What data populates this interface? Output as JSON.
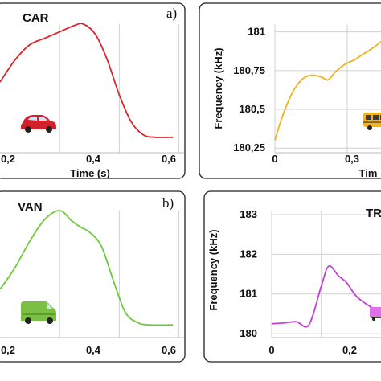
{
  "chart_data": [
    {
      "id": "car",
      "type": "line",
      "title": "CAR",
      "panel_letter": "a)",
      "xlabel": "Time (s)",
      "ylabel": "",
      "x_ticks": [
        "0,2",
        "0,4",
        "0,6"
      ],
      "y_ticks": [],
      "xlim": [
        0.0,
        0.62
      ],
      "ylim": [
        0,
        1
      ],
      "grid": true,
      "color": "#d9262b",
      "icon": "red-car-icon",
      "series": [
        {
          "x": [
            0.0,
            0.05,
            0.1,
            0.15,
            0.2,
            0.25,
            0.28,
            0.32,
            0.36,
            0.4,
            0.44,
            0.48,
            0.52,
            0.58
          ],
          "y": [
            0.55,
            0.72,
            0.84,
            0.89,
            0.94,
            0.99,
            1.0,
            0.92,
            0.72,
            0.45,
            0.24,
            0.14,
            0.12,
            0.12
          ]
        }
      ]
    },
    {
      "id": "bus",
      "type": "line",
      "title": "",
      "panel_letter": "",
      "xlabel": "Tim",
      "ylabel": "Frequency (kHz)",
      "x_ticks": [
        "0",
        "0,3"
      ],
      "y_ticks": [
        "181",
        "180,75",
        "180,5",
        "180,25"
      ],
      "xlim": [
        0.0,
        0.46
      ],
      "ylim": [
        180.22,
        181.05
      ],
      "grid": true,
      "color": "#f0b21e",
      "icon": "yellow-bus-icon",
      "series": [
        {
          "x": [
            0.0,
            0.03,
            0.07,
            0.11,
            0.15,
            0.19,
            0.22,
            0.25,
            0.29,
            0.33,
            0.37,
            0.41,
            0.45
          ],
          "y": [
            180.3,
            180.45,
            180.6,
            180.69,
            180.72,
            180.71,
            180.69,
            180.74,
            180.79,
            180.82,
            180.86,
            180.9,
            180.95
          ]
        }
      ]
    },
    {
      "id": "van",
      "type": "line",
      "title": "VAN",
      "panel_letter": "b)",
      "xlabel": "Time (s)",
      "ylabel": "",
      "x_ticks": [
        "0,2",
        "0,4",
        "0,6"
      ],
      "y_ticks": [],
      "xlim": [
        0.0,
        0.62
      ],
      "ylim": [
        0,
        1
      ],
      "grid": true,
      "color": "#6ec93c",
      "icon": "green-van-icon",
      "series": [
        {
          "x": [
            0.0,
            0.05,
            0.1,
            0.15,
            0.2,
            0.24,
            0.27,
            0.3,
            0.34,
            0.38,
            0.42,
            0.46,
            0.5,
            0.58
          ],
          "y": [
            0.38,
            0.55,
            0.76,
            0.93,
            1.0,
            0.92,
            0.87,
            0.83,
            0.72,
            0.45,
            0.2,
            0.12,
            0.1,
            0.1
          ]
        }
      ]
    },
    {
      "id": "truck",
      "type": "line",
      "title": "TR",
      "panel_letter": "",
      "xlabel": "",
      "ylabel": "Frequency (kHz)",
      "x_ticks": [
        "0",
        "0,2"
      ],
      "y_ticks": [
        "183",
        "182",
        "181",
        "180"
      ],
      "xlim": [
        0.0,
        0.46
      ],
      "ylim": [
        179.9,
        183.1
      ],
      "grid": true,
      "color": "#c142d1",
      "icon": "pink-truck-icon",
      "series": [
        {
          "x": [
            0.0,
            0.05,
            0.1,
            0.15,
            0.2,
            0.23,
            0.27,
            0.3,
            0.34,
            0.38,
            0.42,
            0.46
          ],
          "y": [
            180.25,
            180.27,
            180.3,
            180.22,
            181.2,
            181.7,
            181.45,
            181.3,
            180.95,
            180.75,
            180.6,
            180.45
          ]
        }
      ]
    }
  ]
}
